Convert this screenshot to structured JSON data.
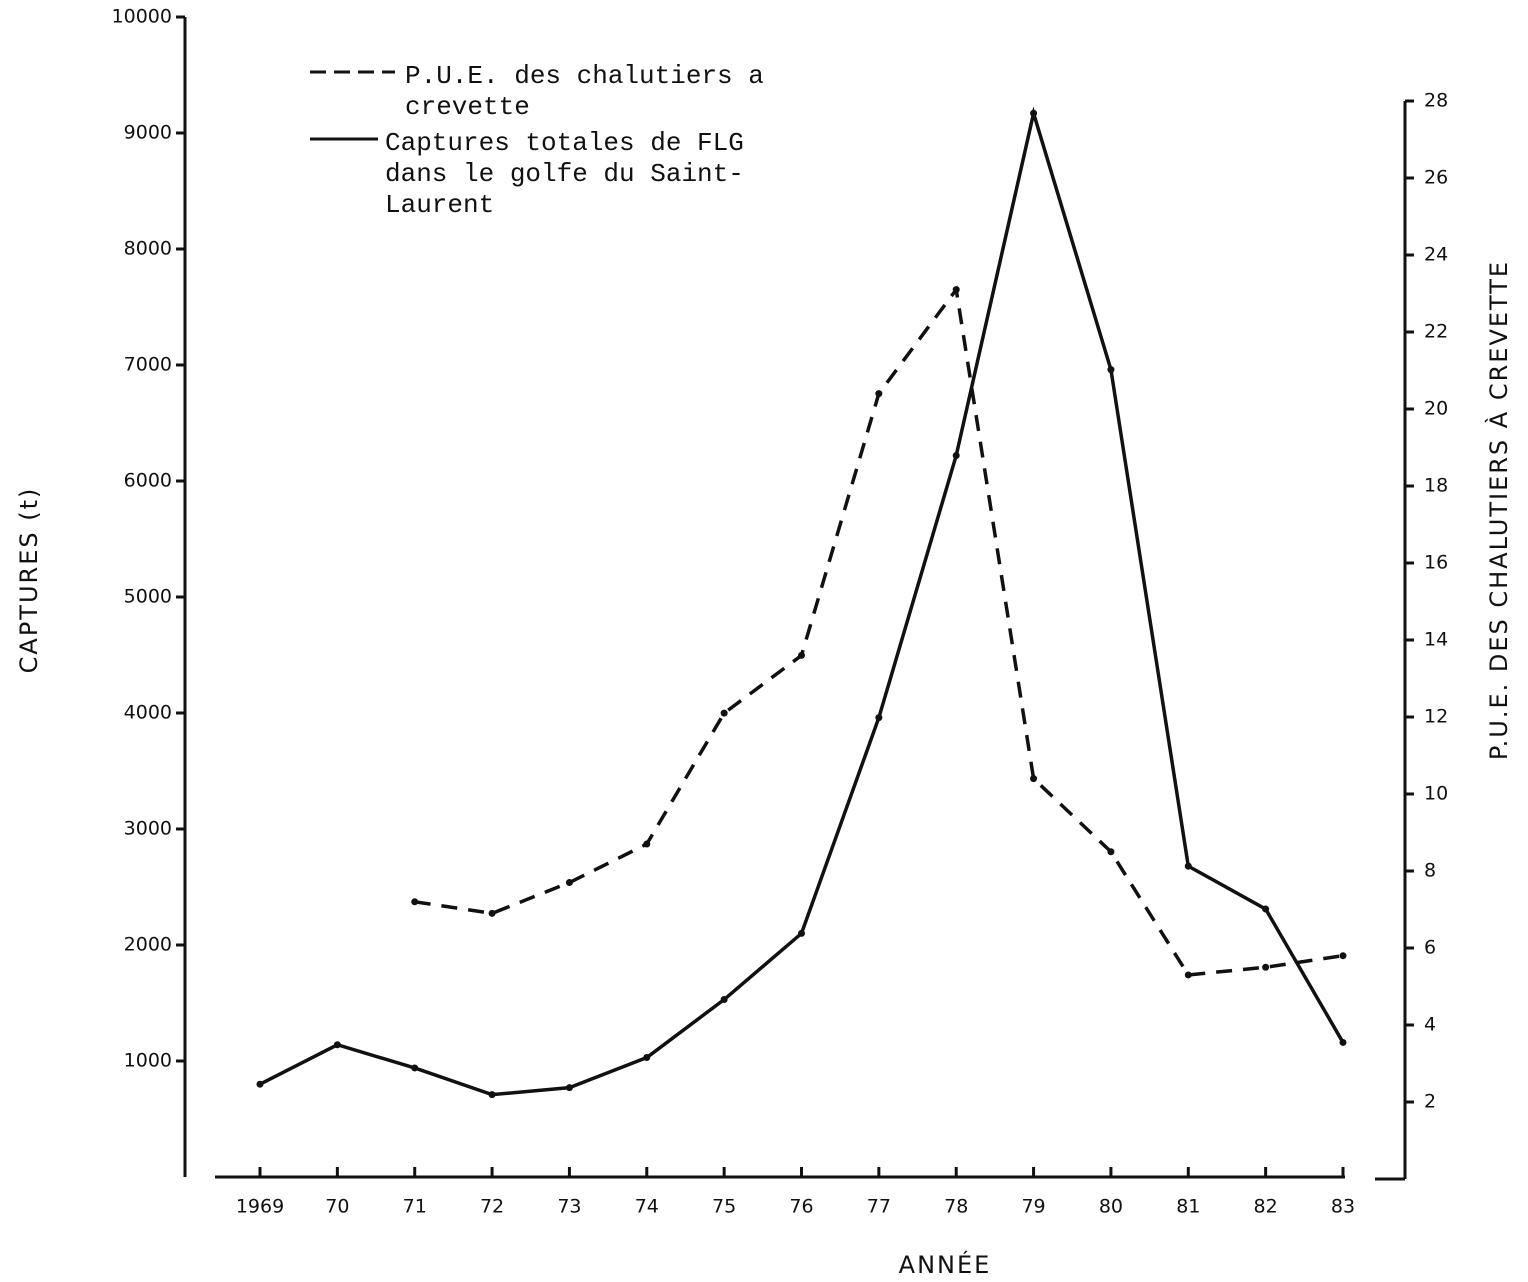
{
  "chart_data": {
    "type": "line",
    "categories": [
      "1969",
      "70",
      "71",
      "72",
      "73",
      "74",
      "75",
      "76",
      "77",
      "78",
      "79",
      "80",
      "81",
      "82",
      "83"
    ],
    "series": [
      {
        "name": "P.U.E. des chalutiers a crevette",
        "color": "#111111",
        "line_style": "dashed",
        "axis": "y2",
        "values": [
          null,
          null,
          7.2,
          6.9,
          7.7,
          8.7,
          12.1,
          13.6,
          20.4,
          23.1,
          10.4,
          8.5,
          5.3,
          5.5,
          5.8
        ]
      },
      {
        "name": "Captures totales de FLG dans le golfe du Saint-Laurent",
        "color": "#111111",
        "line_style": "solid",
        "values": [
          800,
          1140,
          940,
          710,
          770,
          1030,
          1530,
          2100,
          3960,
          6220,
          9170,
          6960,
          2680,
          2310,
          1160
        ]
      }
    ],
    "x_label": "ANNÉE",
    "y_label": "CAPTURES (t)",
    "y2_label": "P.U.E. DES CHALUTIERS À CREVETTE",
    "ylim": [
      0,
      10000
    ],
    "yticks": [
      1000,
      2000,
      3000,
      4000,
      5000,
      6000,
      7000,
      8000,
      9000,
      10000
    ],
    "y2lim": [
      0,
      28
    ],
    "y2ticks": [
      2,
      4,
      6,
      8,
      10,
      12,
      14,
      16,
      18,
      20,
      22,
      24,
      26,
      28
    ]
  }
}
